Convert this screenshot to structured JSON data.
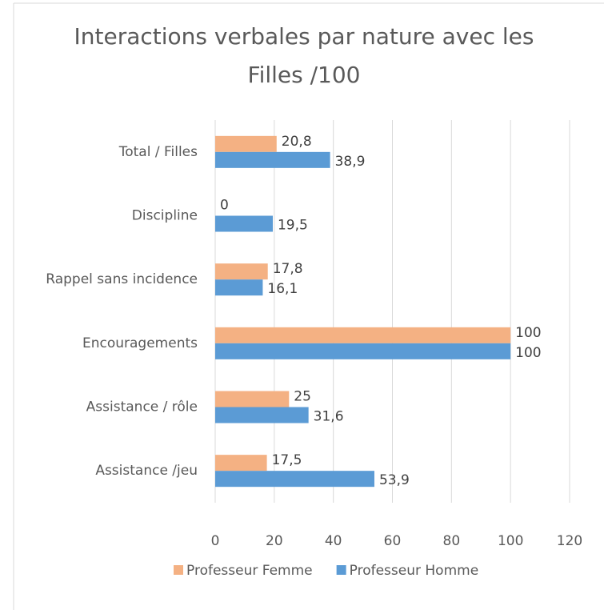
{
  "chart_data": {
    "type": "hbar",
    "title": "Interactions verbales par nature avec les Filles /100",
    "categories": [
      "Total / Filles",
      "Discipline",
      "Rappel sans incidence",
      "Encouragements",
      "Assistance / rôle",
      "Assistance /jeu"
    ],
    "series": [
      {
        "name": "Professeur Femme",
        "color": "#f4b183",
        "values": [
          20.8,
          0,
          17.8,
          100,
          25,
          17.5
        ],
        "value_labels": [
          "20,8",
          "0",
          "17,8",
          "100",
          "25",
          "17,5"
        ]
      },
      {
        "name": "Professeur Homme",
        "color": "#5b9bd5",
        "values": [
          38.9,
          19.5,
          16.1,
          100,
          31.6,
          53.9
        ],
        "value_labels": [
          "38,9",
          "19,5",
          "16,1",
          "100",
          "31,6",
          "53,9"
        ]
      }
    ],
    "xlim": [
      0,
      120
    ],
    "xticks": [
      0,
      20,
      40,
      60,
      80,
      100,
      120
    ],
    "grid": true,
    "legend": "bottom"
  }
}
